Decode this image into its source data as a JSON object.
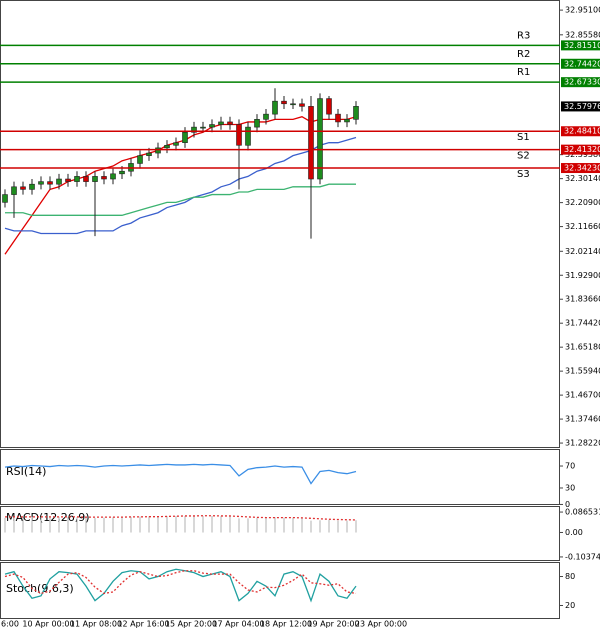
{
  "chart_data": [
    {
      "type": "candlestick",
      "x_labels": [
        "6:00",
        "10 Apr 00:00",
        "11 Apr 08:00",
        "12 Apr 16:00",
        "15 Apr 20:00",
        "17 Apr 04:00",
        "18 Apr 12:00",
        "19 Apr 20:00",
        "23 Apr 00:00"
      ],
      "open": [
        32.21,
        32.24,
        32.27,
        32.26,
        32.28,
        32.29,
        32.28,
        32.3,
        32.29,
        32.31,
        32.29,
        32.31,
        32.3,
        32.32,
        32.33,
        32.36,
        32.39,
        32.4,
        32.42,
        32.43,
        32.44,
        32.48,
        32.5,
        32.5,
        32.51,
        32.52,
        32.51,
        32.43,
        32.5,
        32.53,
        32.55,
        32.6,
        32.59,
        32.59,
        32.58,
        32.3,
        32.61,
        32.55,
        32.52,
        32.53
      ],
      "high": [
        32.26,
        32.29,
        32.29,
        32.3,
        32.31,
        32.31,
        32.32,
        32.32,
        32.33,
        32.33,
        32.33,
        32.33,
        32.34,
        32.35,
        32.38,
        32.41,
        32.42,
        32.44,
        32.45,
        32.46,
        32.5,
        32.52,
        32.52,
        32.53,
        32.54,
        32.54,
        32.53,
        32.52,
        32.55,
        32.57,
        32.65,
        32.62,
        32.61,
        32.61,
        32.62,
        32.63,
        32.62,
        32.57,
        32.55,
        32.6
      ],
      "low": [
        32.19,
        32.15,
        32.24,
        32.24,
        32.26,
        32.26,
        32.26,
        32.27,
        32.27,
        32.27,
        32.08,
        32.28,
        32.28,
        32.3,
        32.31,
        32.34,
        32.37,
        32.38,
        32.4,
        32.41,
        32.42,
        32.46,
        32.48,
        32.48,
        32.49,
        32.49,
        32.26,
        32.41,
        32.48,
        32.51,
        32.53,
        32.57,
        32.57,
        32.56,
        32.07,
        32.28,
        32.53,
        32.5,
        32.5,
        32.51
      ],
      "close": [
        32.24,
        32.27,
        32.26,
        32.28,
        32.29,
        32.28,
        32.3,
        32.29,
        32.31,
        32.29,
        32.31,
        32.3,
        32.32,
        32.33,
        32.36,
        32.39,
        32.4,
        32.42,
        32.43,
        32.44,
        32.48,
        32.5,
        32.5,
        32.51,
        32.52,
        32.51,
        32.43,
        32.5,
        32.53,
        32.55,
        32.6,
        32.59,
        32.59,
        32.58,
        32.3,
        32.61,
        32.55,
        32.52,
        32.53,
        32.58
      ],
      "up_color": "#1e8c1e",
      "down_color": "#d00000",
      "overlays": [
        {
          "color": "#e00000",
          "values": [
            32.01,
            32.06,
            32.11,
            32.16,
            32.21,
            32.26,
            32.27,
            32.29,
            32.3,
            32.31,
            32.33,
            32.34,
            32.35,
            32.37,
            32.38,
            32.39,
            32.4,
            32.41,
            32.43,
            32.44,
            32.45,
            32.47,
            32.48,
            32.5,
            32.51,
            32.51,
            32.51,
            32.52,
            32.52,
            32.52,
            32.53,
            32.53,
            32.53,
            32.54,
            32.52,
            32.53,
            32.53,
            32.53,
            32.53,
            32.54
          ]
        },
        {
          "color": "#3a5fcd",
          "values": [
            32.11,
            32.1,
            32.1,
            32.1,
            32.09,
            32.09,
            32.09,
            32.09,
            32.09,
            32.1,
            32.1,
            32.1,
            32.1,
            32.12,
            32.13,
            32.15,
            32.16,
            32.17,
            32.19,
            32.2,
            32.21,
            32.23,
            32.24,
            32.25,
            32.27,
            32.28,
            32.3,
            32.31,
            32.33,
            32.34,
            32.36,
            32.37,
            32.39,
            32.4,
            32.41,
            32.43,
            32.44,
            32.44,
            32.45,
            32.46
          ]
        },
        {
          "color": "#3cb371",
          "values": [
            32.17,
            32.17,
            32.17,
            32.16,
            32.16,
            32.16,
            32.16,
            32.16,
            32.16,
            32.16,
            32.16,
            32.16,
            32.16,
            32.16,
            32.17,
            32.18,
            32.19,
            32.2,
            32.21,
            32.21,
            32.22,
            32.23,
            32.23,
            32.24,
            32.24,
            32.24,
            32.25,
            32.25,
            32.26,
            32.26,
            32.26,
            32.26,
            32.27,
            32.27,
            32.27,
            32.27,
            32.28,
            32.28,
            32.28,
            32.28
          ]
        }
      ],
      "levels": [
        {
          "name": "R3",
          "value": 32.8151,
          "label": "32.81510",
          "color": "#008000"
        },
        {
          "name": "R2",
          "value": 32.7442,
          "label": "32.74420",
          "color": "#008000"
        },
        {
          "name": "R1",
          "value": 32.6733,
          "label": "32.67330",
          "color": "#008000"
        },
        {
          "name": "S1",
          "value": 32.4841,
          "label": "32.48410",
          "color": "#d00000"
        },
        {
          "name": "S2",
          "value": 32.4132,
          "label": "32.41320",
          "color": "#d00000"
        },
        {
          "name": "S3",
          "value": 32.3423,
          "label": "32.34230",
          "color": "#d00000"
        }
      ],
      "last_price": {
        "value": 32.57976,
        "label": "32.57976"
      },
      "ylim": [
        31.267,
        32.99
      ],
      "yticks": [
        {
          "value": 32.951,
          "label": "32.95100"
        },
        {
          "value": 32.8558,
          "label": "32.85580"
        },
        {
          "value": 32.3938,
          "label": "32.39380"
        },
        {
          "value": 32.3014,
          "label": "32.30140"
        },
        {
          "value": 32.209,
          "label": "32.20900"
        },
        {
          "value": 32.1166,
          "label": "32.11660"
        },
        {
          "value": 32.0214,
          "label": "32.02140"
        },
        {
          "value": 31.929,
          "label": "31.92900"
        },
        {
          "value": 31.8366,
          "label": "31.83660"
        },
        {
          "value": 31.7442,
          "label": "31.74420"
        },
        {
          "value": 31.6518,
          "label": "31.65180"
        },
        {
          "value": 31.5594,
          "label": "31.55940"
        },
        {
          "value": 31.467,
          "label": "31.46700"
        },
        {
          "value": 31.3746,
          "label": "31.37460"
        },
        {
          "value": 31.2822,
          "label": "31.28220"
        }
      ]
    },
    {
      "type": "line",
      "title": "RSI(14)",
      "color": "#3a8ee6",
      "values": [
        68,
        70,
        69,
        71,
        70,
        69,
        71,
        70,
        71,
        70,
        68,
        70,
        71,
        70,
        71,
        72,
        71,
        72,
        73,
        72,
        72,
        73,
        72,
        73,
        72,
        71,
        52,
        64,
        67,
        68,
        70,
        68,
        69,
        68,
        38,
        60,
        62,
        58,
        56,
        60
      ],
      "ylim": [
        -1,
        101
      ],
      "yticks": [
        70,
        30,
        0
      ]
    },
    {
      "type": "macd",
      "title": "MACD(12,26,9)",
      "color": "#b0b0b0",
      "signal_color": "#e03030",
      "values": [
        0.062,
        0.064,
        0.065,
        0.066,
        0.066,
        0.065,
        0.066,
        0.066,
        0.065,
        0.064,
        0.062,
        0.063,
        0.064,
        0.065,
        0.066,
        0.067,
        0.068,
        0.068,
        0.069,
        0.07,
        0.07,
        0.071,
        0.07,
        0.07,
        0.069,
        0.068,
        0.06,
        0.06,
        0.062,
        0.063,
        0.064,
        0.063,
        0.062,
        0.061,
        0.05,
        0.052,
        0.053,
        0.051,
        0.05,
        0.052
      ],
      "signal": [
        0.066,
        0.066,
        0.066,
        0.066,
        0.066,
        0.066,
        0.066,
        0.066,
        0.066,
        0.065,
        0.065,
        0.065,
        0.065,
        0.065,
        0.066,
        0.066,
        0.067,
        0.067,
        0.068,
        0.069,
        0.07,
        0.07,
        0.071,
        0.071,
        0.07,
        0.07,
        0.068,
        0.066,
        0.064,
        0.063,
        0.063,
        0.063,
        0.063,
        0.062,
        0.06,
        0.058,
        0.056,
        0.055,
        0.054,
        0.053
      ],
      "ylim": [
        -0.121,
        0.108
      ],
      "yticks": [
        0.086531,
        {
          "value": 0,
          "label": "0.00"
        },
        -0.103744
      ]
    },
    {
      "type": "stoch",
      "title": "Stoch(9,6,3)",
      "color": "#20a0a0",
      "signal_color": "#e03030",
      "values": [
        85,
        90,
        60,
        35,
        40,
        75,
        90,
        88,
        85,
        60,
        30,
        45,
        70,
        88,
        92,
        90,
        75,
        80,
        90,
        95,
        92,
        88,
        80,
        85,
        90,
        80,
        30,
        45,
        70,
        60,
        40,
        85,
        90,
        80,
        30,
        85,
        70,
        40,
        35,
        60
      ],
      "signal": [
        80,
        85,
        78,
        55,
        45,
        50,
        68,
        85,
        88,
        78,
        58,
        45,
        48,
        67,
        83,
        90,
        85,
        80,
        82,
        88,
        92,
        92,
        87,
        85,
        85,
        85,
        67,
        52,
        48,
        58,
        57,
        62,
        72,
        85,
        67,
        65,
        62,
        65,
        48,
        45
      ],
      "ylim": [
        -8,
        108
      ],
      "yticks": [
        80,
        20
      ]
    }
  ]
}
